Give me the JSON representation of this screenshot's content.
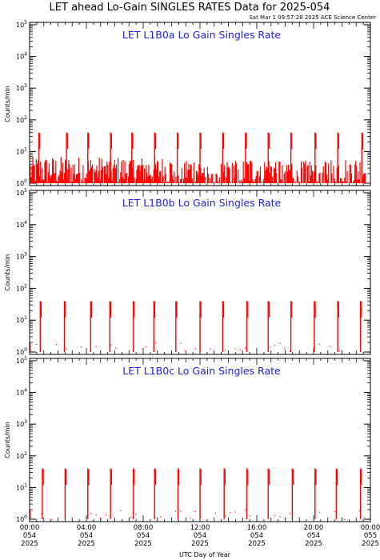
{
  "header": {
    "title": "LET ahead Lo-Gain SINGLES RATES Data for 2025-054",
    "timestamp": "Sat Mar  1 09:57:28 2025 ACE Science Center"
  },
  "chart_data": [
    {
      "type": "line",
      "title": "LET L1B0a Lo Gain Singles Rate",
      "ylabel": "Counts/min",
      "xlabel": "UTC Day of Year",
      "yscale": "log",
      "ylim": [
        1,
        100000
      ],
      "xlim": [
        0,
        24
      ],
      "color": "#ff0000",
      "baseline_range": [
        1,
        7
      ],
      "spike_hours": [
        0.65,
        2.6,
        4.1,
        5.7,
        7.2,
        8.8,
        10.4,
        12.0,
        13.6,
        15.2,
        16.8,
        18.4,
        20.1,
        21.7,
        23.4
      ],
      "spike_values": [
        40,
        40,
        40,
        40,
        40,
        40,
        40,
        40,
        40,
        40,
        40,
        40,
        40,
        40,
        40
      ]
    },
    {
      "type": "line",
      "title": "LET L1B0b Lo Gain Singles Rate",
      "ylabel": "Counts/min",
      "xlabel": "UTC Day of Year",
      "yscale": "log",
      "ylim": [
        1,
        100000
      ],
      "xlim": [
        0,
        24
      ],
      "color": "#ff0000",
      "baseline_range": [
        1,
        2
      ],
      "spike_hours": [
        0.75,
        2.45,
        4.3,
        5.65,
        7.3,
        8.75,
        10.3,
        12.0,
        13.6,
        15.3,
        16.8,
        18.4,
        20.05,
        21.7,
        23.3
      ],
      "spike_values": [
        40,
        40,
        40,
        40,
        40,
        40,
        40,
        40,
        40,
        40,
        40,
        40,
        40,
        40,
        40
      ]
    },
    {
      "type": "line",
      "title": "LET L1B0c Lo Gain Singles Rate",
      "ylabel": "Counts/min",
      "xlabel": "UTC Day of Year",
      "yscale": "log",
      "ylim": [
        1,
        100000
      ],
      "xlim": [
        0,
        24
      ],
      "color": "#ff0000",
      "baseline_range": [
        1,
        2
      ],
      "spike_hours": [
        0.9,
        2.5,
        4.1,
        5.7,
        7.3,
        8.8,
        10.45,
        12.0,
        13.7,
        15.3,
        16.8,
        18.5,
        20.1,
        21.6,
        23.3
      ],
      "spike_values": [
        40,
        40,
        40,
        40,
        40,
        40,
        40,
        40,
        40,
        40,
        40,
        40,
        40,
        40,
        40
      ]
    }
  ],
  "y_tick_labels": [
    {
      "base": "10",
      "exp": "0"
    },
    {
      "base": "10",
      "exp": "1"
    },
    {
      "base": "10",
      "exp": "2"
    },
    {
      "base": "10",
      "exp": "3"
    },
    {
      "base": "10",
      "exp": "4"
    },
    {
      "base": "10",
      "exp": "5"
    }
  ],
  "x_tick_labels": [
    {
      "time": "00:00",
      "doy": "054",
      "year": "2025"
    },
    {
      "time": "04:00",
      "doy": "054",
      "year": "2025"
    },
    {
      "time": "08:00",
      "doy": "054",
      "year": "2025"
    },
    {
      "time": "12:00",
      "doy": "054",
      "year": "2025"
    },
    {
      "time": "16:00",
      "doy": "054",
      "year": "2025"
    },
    {
      "time": "20:00",
      "doy": "054",
      "year": "2025"
    },
    {
      "time": "00:00",
      "doy": "055",
      "year": "2025"
    }
  ]
}
